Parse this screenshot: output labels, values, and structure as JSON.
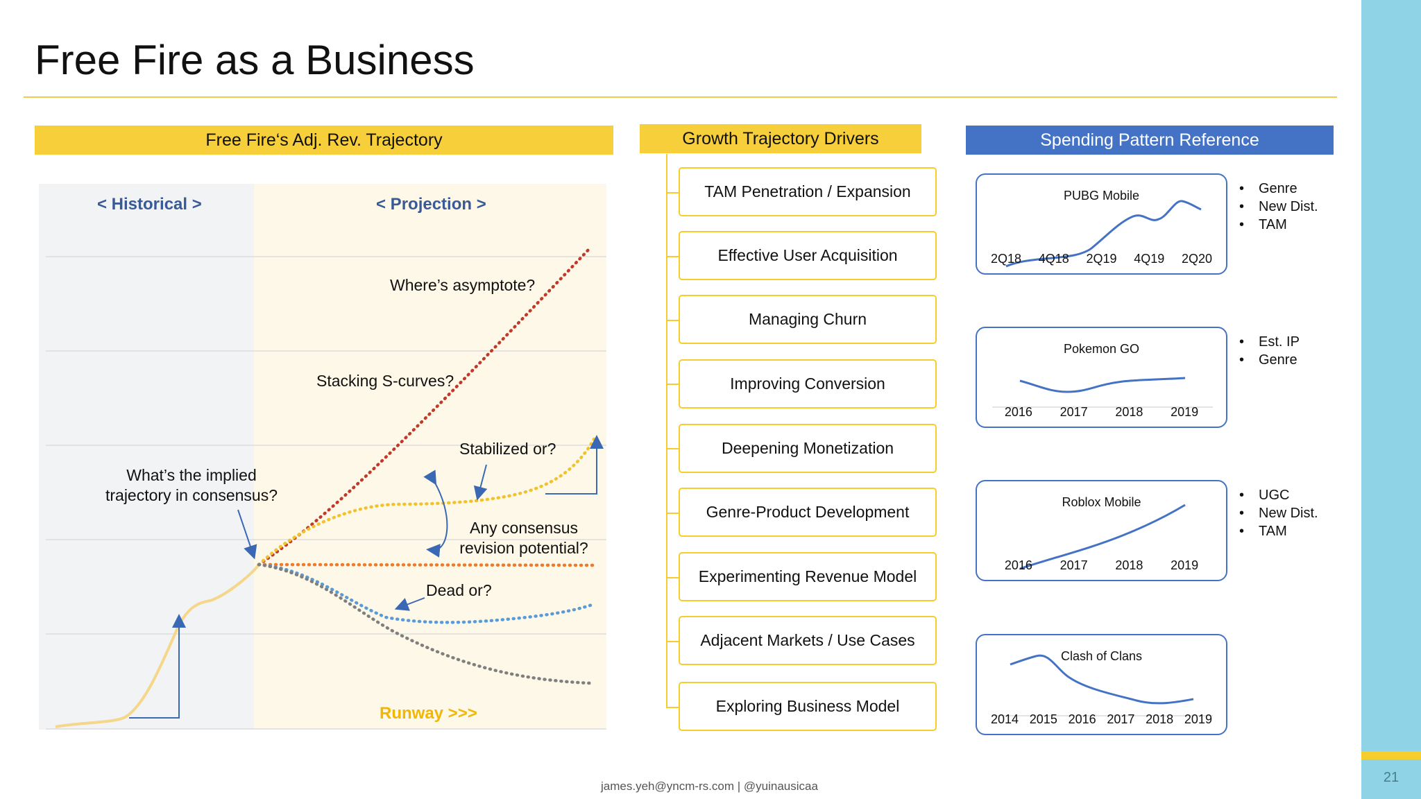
{
  "slide": {
    "title": "Free Fire as a Business",
    "footer": "james.yeh@yncm-rs.com | @yuinausicaa",
    "page_number": "21"
  },
  "left_panel": {
    "banner": "Free Fire‘s Adj. Rev. Trajectory",
    "historical_label": "< Historical >",
    "projection_label": "< Projection >",
    "runway_label": "Runway >>>",
    "annotations": {
      "asymptote": "Where’s asymptote?",
      "s_curves": "Stacking S-curves?",
      "stabilized": "Stabilized or?",
      "consensus_line1": "What’s the implied",
      "consensus_line2": "trajectory in consensus?",
      "revision_line1": "Any consensus",
      "revision_line2": "revision potential?",
      "dead": "Dead or?"
    },
    "colors": {
      "historical_line": "#f5d78b",
      "high_case": "#c0392b",
      "stabilize_case": "#f2c12e",
      "flat_case": "#f07a28",
      "dip_case": "#5b9bd5",
      "decline_case": "#7f7f7f",
      "arrows": "#3a68b5"
    }
  },
  "drivers": {
    "banner": "Growth Trajectory Drivers",
    "items": [
      "TAM Penetration / Expansion",
      "Effective User Acquisition",
      "Managing Churn",
      "Improving Conversion",
      "Deepening Monetization",
      "Genre-Product Development",
      "Experimenting Revenue Model",
      "Adjacent Markets / Use Cases",
      "Exploring Business Model"
    ]
  },
  "spending": {
    "banner": "Spending Pattern Reference",
    "cards": [
      {
        "name": "PUBG Mobile",
        "ticks": [
          "2Q18",
          "4Q18",
          "2Q19",
          "4Q19",
          "2Q20"
        ],
        "bullets": [
          "Genre",
          "New Dist.",
          "TAM"
        ]
      },
      {
        "name": "Pokemon GO",
        "ticks": [
          "2016",
          "2017",
          "2018",
          "2019"
        ],
        "bullets": [
          "Est. IP",
          "Genre"
        ]
      },
      {
        "name": "Roblox Mobile",
        "ticks": [
          "2016",
          "2017",
          "2018",
          "2019"
        ],
        "bullets": [
          "UGC",
          "New Dist.",
          "TAM"
        ]
      },
      {
        "name": "Clash of Clans",
        "ticks": [
          "2014",
          "2015",
          "2016",
          "2017",
          "2018",
          "2019"
        ],
        "bullets": []
      }
    ],
    "line_color": "#4472c4"
  }
}
